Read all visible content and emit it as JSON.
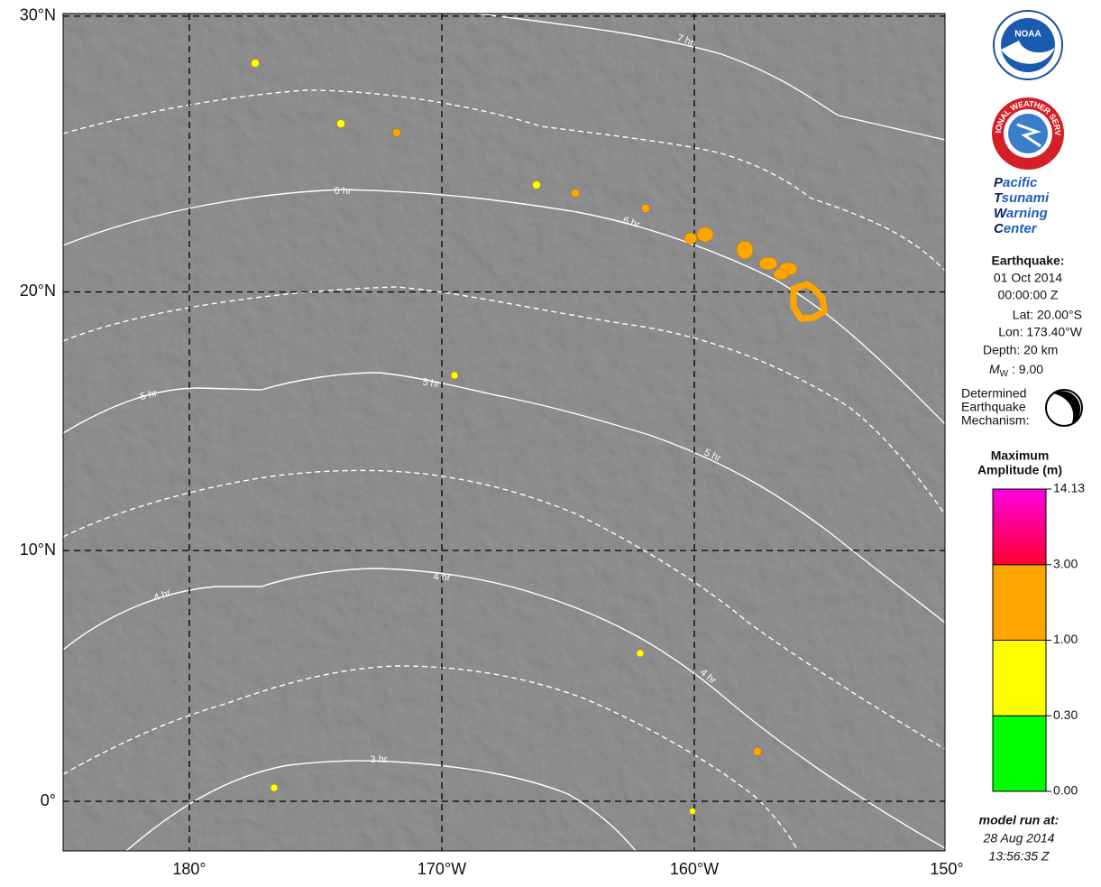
{
  "map": {
    "lat_ticks": [
      {
        "value": 30,
        "label": "30°N"
      },
      {
        "value": 20,
        "label": "20°N"
      },
      {
        "value": 10,
        "label": "10°N"
      },
      {
        "value": 0,
        "label": "0°"
      }
    ],
    "lon_ticks": [
      {
        "value": 180,
        "label": "180°"
      },
      {
        "value": -170,
        "label": "170°W"
      },
      {
        "value": -160,
        "label": "160°W"
      },
      {
        "value": -150,
        "label": "150°"
      }
    ],
    "contour_labels": [
      "7 hr",
      "6 hr",
      "6 hr",
      "5 hr",
      "5 hr",
      "5 hr",
      "4 hr",
      "4 hr",
      "4 hr",
      "3 hr"
    ]
  },
  "sidebar": {
    "noaa": "NOAA",
    "nws": "NATIONAL WEATHER SERVICE",
    "center": [
      {
        "initial": "P",
        "rest": "acific"
      },
      {
        "initial": "T",
        "rest": "sunami"
      },
      {
        "initial": "W",
        "rest": "arning"
      },
      {
        "initial": "C",
        "rest": "enter"
      }
    ],
    "earthquake": {
      "heading": "Earthquake:",
      "date": "01 Oct 2014",
      "time": "00:00:00 Z",
      "lat": "Lat: 20.00°S",
      "lon": "Lon: 173.40°W",
      "depth": "Depth: 20 km",
      "magnitude": {
        "symbol": "M",
        "subscript": "W",
        "value": " : 9.00"
      }
    },
    "mechanism": [
      "Determined",
      "Earthquake",
      "Mechanism:"
    ],
    "colorbar": {
      "title": [
        "Maximum",
        "Amplitude (m)"
      ],
      "levels": [
        {
          "value": 0,
          "label": "0.00"
        },
        {
          "value": 0.3,
          "label": "0.30"
        },
        {
          "value": 1,
          "label": "1.00"
        },
        {
          "value": 3,
          "label": "3.00"
        },
        {
          "value": 14.13,
          "label": "14.13"
        }
      ],
      "colors": [
        "#00ff00",
        "#ffff00",
        "#ffa500",
        "#ff0030"
      ],
      "top_color": "#ff00e0"
    },
    "model_run": {
      "heading": "model run at:",
      "date": "28 Aug 2014",
      "time": "13:56:35 Z"
    }
  }
}
